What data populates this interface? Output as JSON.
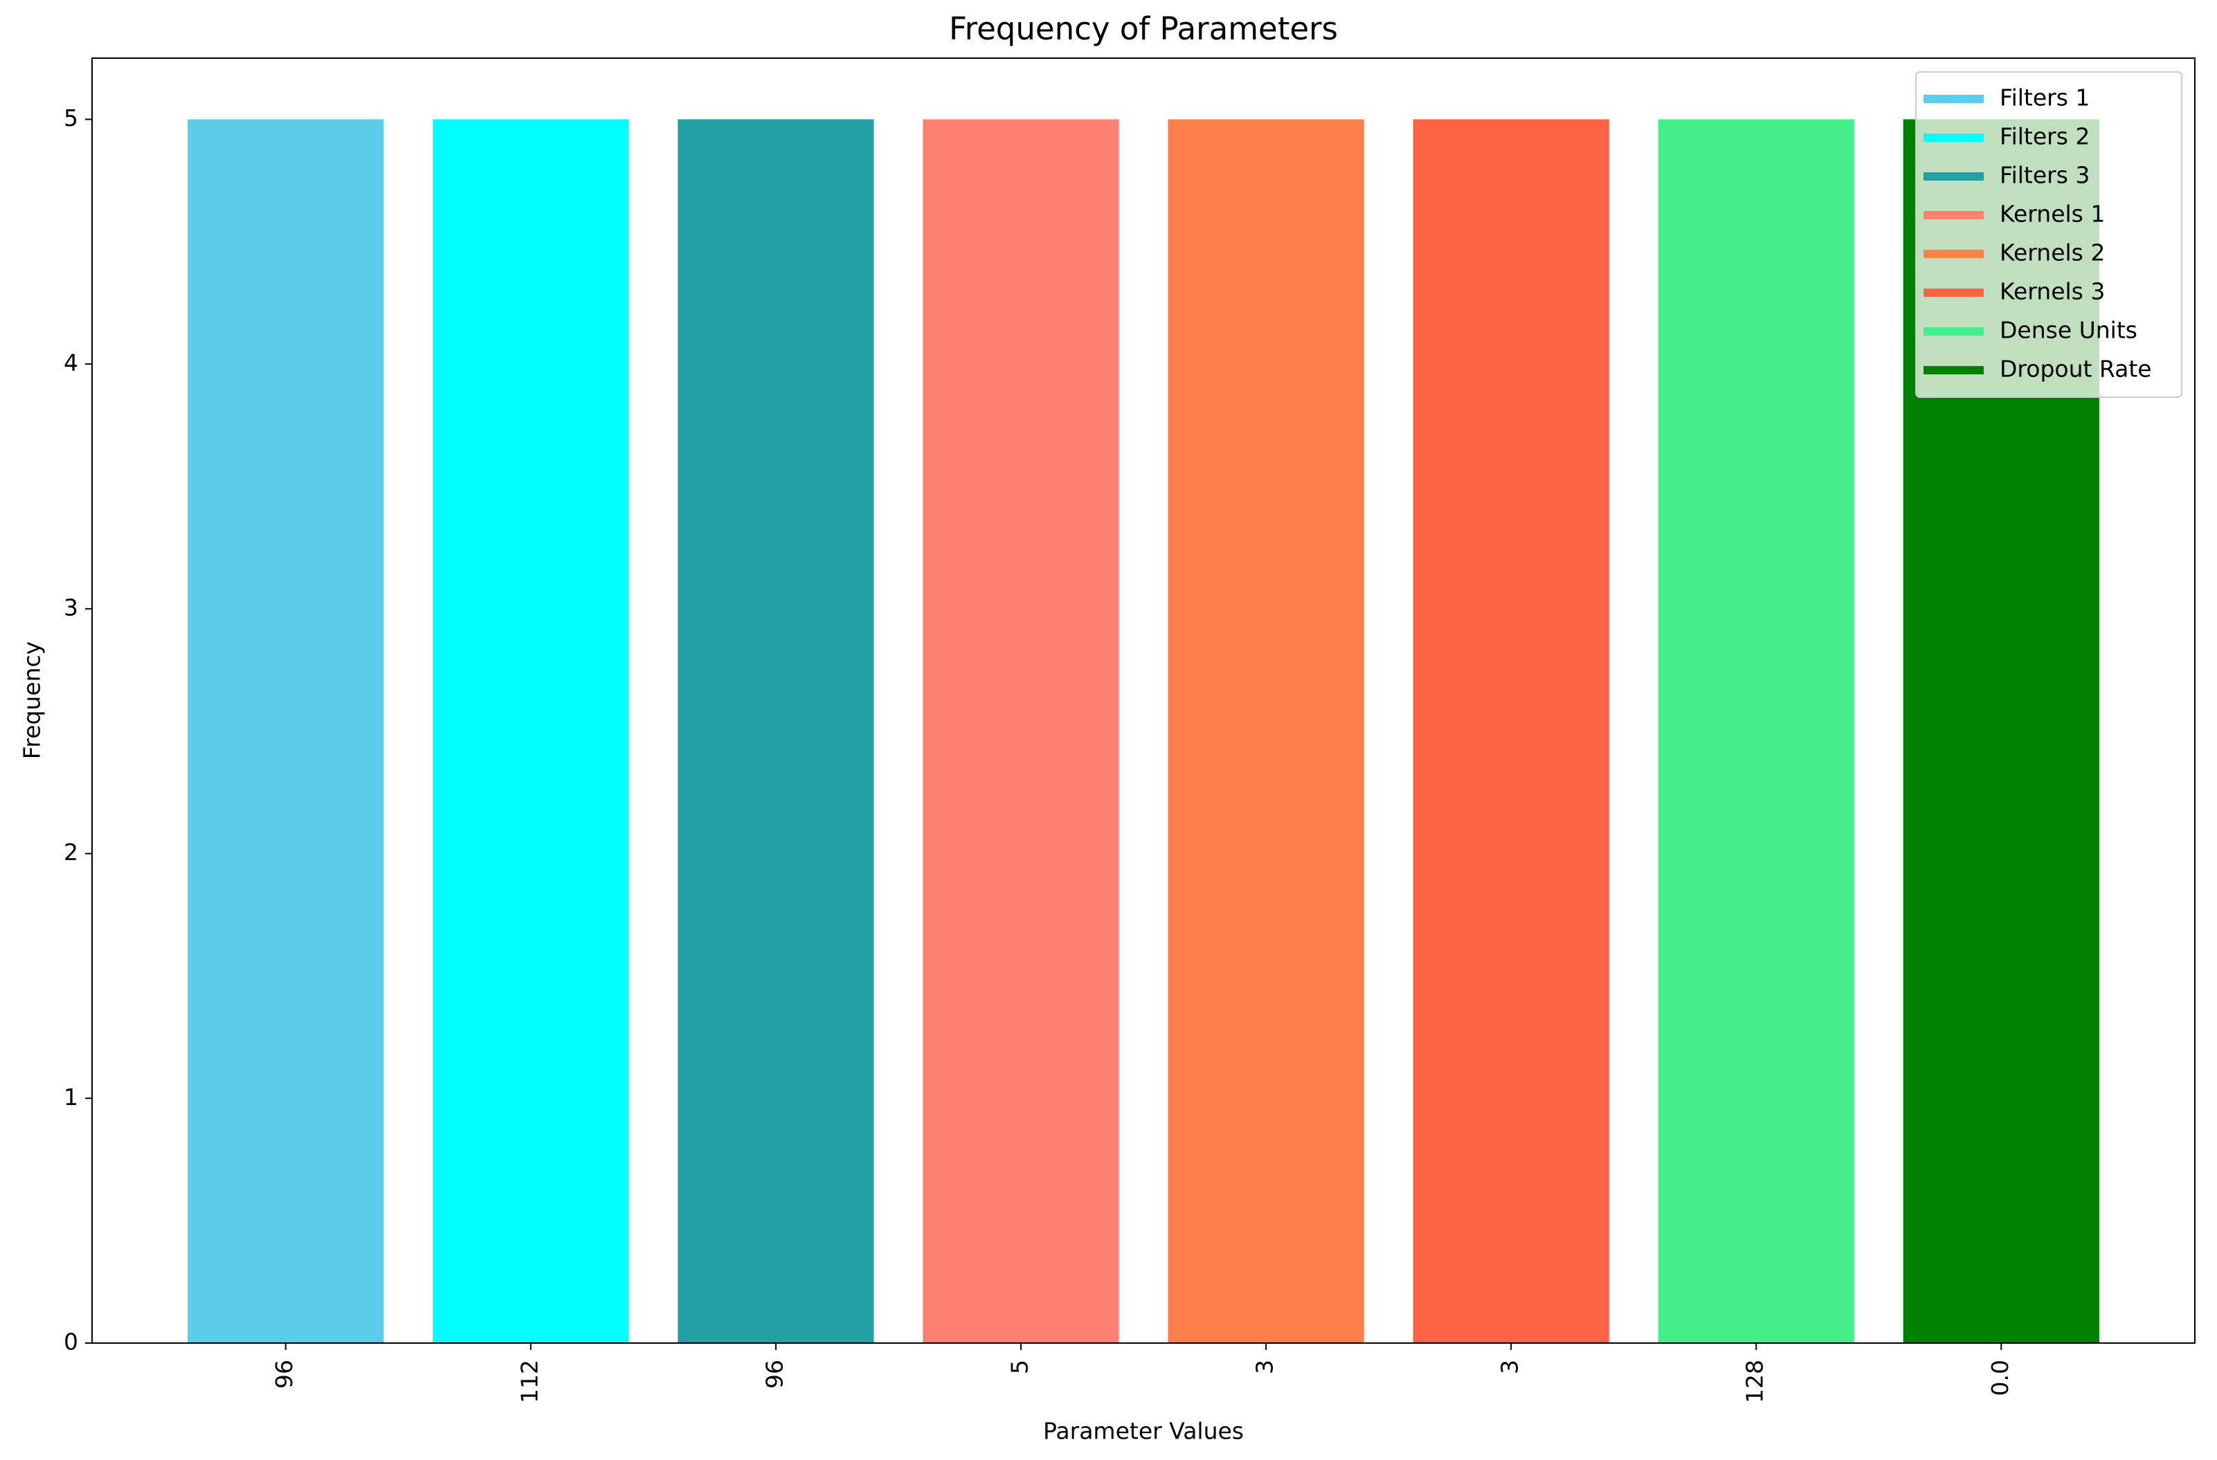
{
  "chart_data": {
    "type": "bar",
    "title": "Frequency of Parameters",
    "x_label": "Parameter Values",
    "y_label": "Frequency",
    "categories": [
      "96",
      "112",
      "96",
      "5",
      "3",
      "3",
      "128",
      "0.0"
    ],
    "values": [
      5,
      5,
      5,
      5,
      5,
      5,
      5,
      5
    ],
    "colors": [
      "#5bcdea",
      "#00ffff",
      "#23a0a3",
      "#ff7f70",
      "#ff7f4a",
      "#ff6345",
      "#44ef8a",
      "#008000"
    ],
    "legend": [
      "Filters 1",
      "Filters 2",
      "Filters 3",
      "Kernels 1",
      "Kernels 2",
      "Kernels 3",
      "Dense Units",
      "Dropout Rate"
    ],
    "legend_position": "upper right",
    "ylim": [
      0,
      5.25
    ],
    "yticks": [
      0,
      1,
      2,
      3,
      4,
      5
    ]
  }
}
